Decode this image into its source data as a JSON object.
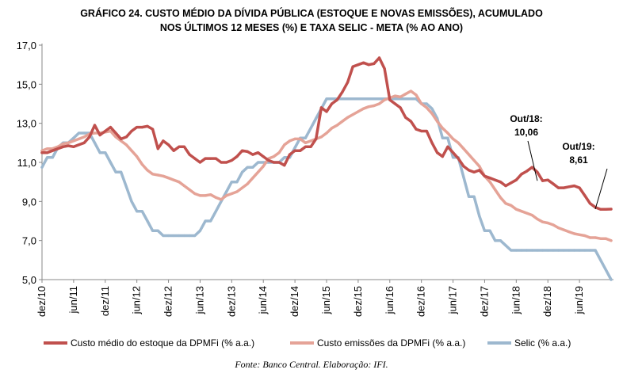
{
  "chart_data": {
    "type": "line",
    "title_lines": [
      "GRÁFICO 24. CUSTO MÉDIO DA DÍVIDA PÚBLICA (ESTOQUE E NOVAS EMISSÕES), ACUMULADO",
      "NOS ÚLTIMOS 12 MESES (%) E TAXA SELIC - META (% AO ANO)"
    ],
    "xlabel": "",
    "ylabel": "",
    "ylim": [
      5.0,
      17.0
    ],
    "yticks": [
      5.0,
      7.0,
      9.0,
      11.0,
      13.0,
      15.0,
      17.0
    ],
    "ytick_labels": [
      "5,0",
      "7,0",
      "9,0",
      "11,0",
      "13,0",
      "15,0",
      "17,0"
    ],
    "x_start": "2010-12",
    "x_end": "2019-09",
    "xtick_labels": [
      "dez/10",
      "jun/11",
      "dez/11",
      "jun/12",
      "dez/12",
      "jun/13",
      "dez/13",
      "jun/14",
      "dez/14",
      "jun/15",
      "dez/15",
      "jun/16",
      "dez/16",
      "jun/17",
      "dez/17",
      "jun/18",
      "dez/18",
      "jun/19"
    ],
    "legend_position": "bottom",
    "grid": false,
    "series": [
      {
        "name": "Custo médio do estoque da DPMFi (% a.a.)",
        "color": "#C0504D",
        "values": [
          11.5,
          11.5,
          11.6,
          11.7,
          11.8,
          11.85,
          11.8,
          11.9,
          12.0,
          12.3,
          12.9,
          12.4,
          12.6,
          12.8,
          12.5,
          12.2,
          12.3,
          12.6,
          12.8,
          12.8,
          12.85,
          12.7,
          11.7,
          12.1,
          11.9,
          11.6,
          11.8,
          11.8,
          11.4,
          11.2,
          11.0,
          11.2,
          11.2,
          11.2,
          11.0,
          11.0,
          11.1,
          11.3,
          11.6,
          11.55,
          11.4,
          11.5,
          11.3,
          11.1,
          11.0,
          11.0,
          10.85,
          11.4,
          11.6,
          11.6,
          11.8,
          11.8,
          12.2,
          13.8,
          13.6,
          14.0,
          14.2,
          14.6,
          15.1,
          15.9,
          16.0,
          16.1,
          16.0,
          16.05,
          16.35,
          15.8,
          14.2,
          14.0,
          13.8,
          13.3,
          13.1,
          12.7,
          12.6,
          12.6,
          12.0,
          11.5,
          11.3,
          11.8,
          11.5,
          11.2,
          10.8,
          10.6,
          10.5,
          10.6,
          10.3,
          10.2,
          10.1,
          10.0,
          9.8,
          9.95,
          10.1,
          10.4,
          10.55,
          10.75,
          10.5,
          10.06,
          10.1,
          9.9,
          9.7,
          9.7,
          9.75,
          9.8,
          9.7,
          9.3,
          8.9,
          8.7,
          8.6,
          8.6,
          8.61
        ]
      },
      {
        "name": "Custo emissões da DPMFi (% a.a.)",
        "color": "#E5A397",
        "values": [
          11.6,
          11.7,
          11.7,
          11.8,
          11.95,
          12.0,
          12.1,
          12.2,
          12.3,
          12.45,
          12.5,
          12.5,
          12.55,
          12.6,
          12.3,
          12.1,
          11.9,
          11.6,
          11.3,
          10.9,
          10.6,
          10.4,
          10.35,
          10.3,
          10.2,
          10.1,
          10.0,
          9.8,
          9.6,
          9.4,
          9.3,
          9.3,
          9.35,
          9.2,
          9.1,
          9.3,
          9.4,
          9.5,
          9.7,
          9.9,
          10.2,
          10.5,
          10.8,
          11.2,
          11.3,
          11.5,
          11.9,
          12.1,
          12.2,
          12.2,
          12.0,
          12.1,
          12.2,
          12.3,
          12.5,
          12.75,
          12.9,
          13.1,
          13.3,
          13.45,
          13.6,
          13.75,
          13.85,
          13.9,
          14.0,
          14.2,
          14.3,
          14.4,
          14.35,
          14.5,
          14.65,
          14.45,
          14.0,
          13.8,
          13.5,
          13.1,
          12.75,
          12.5,
          12.2,
          12.0,
          11.7,
          11.4,
          11.1,
          10.8,
          10.3,
          10.0,
          9.6,
          9.2,
          8.9,
          8.8,
          8.6,
          8.5,
          8.4,
          8.3,
          8.1,
          7.95,
          7.9,
          7.8,
          7.65,
          7.55,
          7.45,
          7.35,
          7.3,
          7.25,
          7.15,
          7.15,
          7.1,
          7.1,
          7.0
        ]
      },
      {
        "name": "Selic (% a.a.)",
        "color": "#9DB8CF",
        "values": [
          10.75,
          11.25,
          11.25,
          11.75,
          12.0,
          12.0,
          12.25,
          12.5,
          12.5,
          12.5,
          12.0,
          11.5,
          11.5,
          11.0,
          10.5,
          10.5,
          9.75,
          9.0,
          8.5,
          8.5,
          8.0,
          7.5,
          7.5,
          7.25,
          7.25,
          7.25,
          7.25,
          7.25,
          7.25,
          7.25,
          7.5,
          8.0,
          8.0,
          8.5,
          9.0,
          9.5,
          10.0,
          10.0,
          10.5,
          10.75,
          10.75,
          11.0,
          11.0,
          11.0,
          11.0,
          11.0,
          11.25,
          11.25,
          11.75,
          12.25,
          12.25,
          12.75,
          13.25,
          13.75,
          14.25,
          14.25,
          14.25,
          14.25,
          14.25,
          14.25,
          14.25,
          14.25,
          14.25,
          14.25,
          14.25,
          14.25,
          14.25,
          14.25,
          14.25,
          14.25,
          14.25,
          14.25,
          14.0,
          14.0,
          13.75,
          13.25,
          12.25,
          12.25,
          11.25,
          11.25,
          10.25,
          9.25,
          9.25,
          8.25,
          7.5,
          7.5,
          7.0,
          7.0,
          6.75,
          6.5,
          6.5,
          6.5,
          6.5,
          6.5,
          6.5,
          6.5,
          6.5,
          6.5,
          6.5,
          6.5,
          6.5,
          6.5,
          6.5,
          6.5,
          6.5,
          6.5,
          6.0,
          5.5,
          5.0
        ]
      }
    ],
    "annotations": [
      {
        "lines": [
          "Out/18:",
          "10,06"
        ],
        "series": 0,
        "date": "2018-10",
        "value": 10.06
      },
      {
        "lines": [
          "Out/19:",
          "8,61"
        ],
        "series": 0,
        "date": "2019-09",
        "value": 8.61
      }
    ]
  },
  "source": "Fonte: Banco Central. Elaboração: IFI."
}
